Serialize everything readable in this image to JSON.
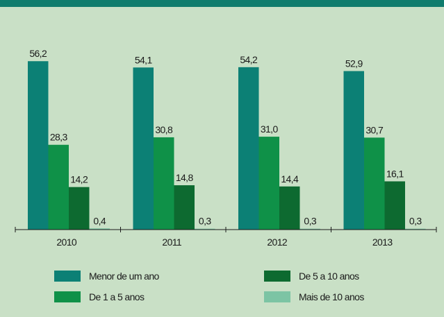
{
  "chart_data": {
    "type": "bar",
    "categories": [
      "2010",
      "2011",
      "2012",
      "2013"
    ],
    "series": [
      {
        "name": "Menor de um ano",
        "color": "#0c8075",
        "values": [
          56.2,
          54.1,
          54.2,
          52.9
        ],
        "value_labels": [
          "56,2",
          "54,1",
          "54,2",
          "52,9"
        ]
      },
      {
        "name": "De 1 a 5 anos",
        "color": "#0f9148",
        "values": [
          28.3,
          30.8,
          31.0,
          30.7
        ],
        "value_labels": [
          "28,3",
          "30,8",
          "31,0",
          "30,7"
        ]
      },
      {
        "name": "De 5 a 10 anos",
        "color": "#0d6a30",
        "values": [
          14.2,
          14.8,
          14.4,
          16.1
        ],
        "value_labels": [
          "14,2",
          "14,8",
          "14,4",
          "16,1"
        ]
      },
      {
        "name": "Mais de 10 anos",
        "color": "#7cc4a4",
        "values": [
          0.4,
          0.3,
          0.3,
          0.3
        ],
        "value_labels": [
          "0,4",
          "0,3",
          "0,3",
          "0,3"
        ]
      }
    ]
  }
}
